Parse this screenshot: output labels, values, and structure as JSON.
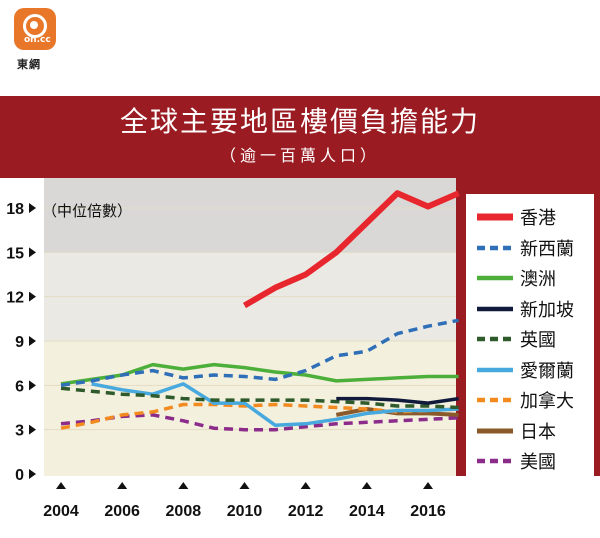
{
  "logo": {
    "on_text": "on.cc",
    "brand": "東網"
  },
  "chart_data": {
    "type": "line",
    "title": "全球主要地區樓價負擔能力",
    "subtitle": "（逾一百萬人口）",
    "ylabel": "（中位倍數）",
    "xlabel": "",
    "x": [
      2004,
      2005,
      2006,
      2007,
      2008,
      2009,
      2010,
      2011,
      2012,
      2013,
      2014,
      2015,
      2016,
      2017
    ],
    "x_ticks": [
      "2004",
      "2006",
      "2008",
      "2010",
      "2012",
      "2014",
      "2016"
    ],
    "y_ticks": [
      "0",
      "3",
      "6",
      "9",
      "12",
      "15",
      "18"
    ],
    "ylim": [
      0,
      19
    ],
    "xlim": [
      2004,
      2017
    ],
    "legend_position": "right",
    "series": [
      {
        "name": "香港",
        "color": "#e8262d",
        "dash": "solid",
        "width": 6,
        "x": [
          2010,
          2011,
          2012,
          2013,
          2014,
          2015,
          2016,
          2017
        ],
        "values": [
          11.4,
          12.6,
          13.5,
          15.0,
          17.0,
          19.0,
          18.1,
          19.0
        ]
      },
      {
        "name": "新西蘭",
        "color": "#2e6fb7",
        "dash": "dashed",
        "width": 3.5,
        "x": [
          2004,
          2005,
          2006,
          2007,
          2008,
          2009,
          2010,
          2011,
          2012,
          2013,
          2014,
          2015,
          2016,
          2017
        ],
        "values": [
          6.0,
          6.3,
          6.7,
          7.0,
          6.5,
          6.7,
          6.6,
          6.4,
          7.0,
          8.0,
          8.3,
          9.5,
          10.0,
          10.4
        ]
      },
      {
        "name": "澳洲",
        "color": "#4caf3a",
        "dash": "solid",
        "width": 3.5,
        "x": [
          2004,
          2005,
          2006,
          2007,
          2008,
          2009,
          2010,
          2011,
          2012,
          2013,
          2014,
          2015,
          2016,
          2017
        ],
        "values": [
          6.1,
          6.4,
          6.7,
          7.4,
          7.1,
          7.4,
          7.2,
          6.9,
          6.7,
          6.3,
          6.4,
          6.5,
          6.6,
          6.6
        ]
      },
      {
        "name": "新加坡",
        "color": "#101a3a",
        "dash": "solid",
        "width": 3.5,
        "x": [
          2013,
          2014,
          2015,
          2016,
          2017
        ],
        "values": [
          5.1,
          5.1,
          5.0,
          4.8,
          5.1
        ]
      },
      {
        "name": "英國",
        "color": "#2e5a2c",
        "dash": "dashed",
        "width": 3.5,
        "x": [
          2004,
          2005,
          2006,
          2007,
          2008,
          2009,
          2010,
          2011,
          2012,
          2013,
          2014,
          2015,
          2016,
          2017
        ],
        "values": [
          5.8,
          5.6,
          5.4,
          5.3,
          5.1,
          5.0,
          5.0,
          5.0,
          5.0,
          4.9,
          4.8,
          4.6,
          4.6,
          4.5
        ]
      },
      {
        "name": "愛爾蘭",
        "color": "#47a9de",
        "dash": "solid",
        "width": 3.5,
        "x": [
          2005,
          2006,
          2007,
          2008,
          2009,
          2010,
          2011,
          2012,
          2013,
          2014,
          2015,
          2016,
          2017
        ],
        "values": [
          6.1,
          5.7,
          5.4,
          6.1,
          4.8,
          4.8,
          3.3,
          3.4,
          3.7,
          4.1,
          4.3,
          4.3,
          4.4
        ]
      },
      {
        "name": "加拿大",
        "color": "#f28a1f",
        "dash": "dashed",
        "width": 3.5,
        "x": [
          2004,
          2005,
          2006,
          2007,
          2008,
          2009,
          2010,
          2011,
          2012,
          2013,
          2014,
          2015,
          2016,
          2017
        ],
        "values": [
          3.1,
          3.5,
          4.0,
          4.2,
          4.7,
          4.7,
          4.6,
          4.7,
          4.6,
          4.5,
          4.4,
          4.2,
          4.3,
          4.4
        ]
      },
      {
        "name": "日本",
        "color": "#8b5a2b",
        "dash": "solid",
        "width": 4,
        "x": [
          2013,
          2014,
          2015,
          2016,
          2017
        ],
        "values": [
          4.0,
          4.4,
          4.1,
          4.1,
          4.0
        ]
      },
      {
        "name": "美國",
        "color": "#8c2c8a",
        "dash": "dashed",
        "width": 3.5,
        "x": [
          2004,
          2005,
          2006,
          2007,
          2008,
          2009,
          2010,
          2011,
          2012,
          2013,
          2014,
          2015,
          2016,
          2017
        ],
        "values": [
          3.4,
          3.6,
          3.9,
          4.0,
          3.6,
          3.1,
          3.0,
          3.0,
          3.2,
          3.4,
          3.5,
          3.6,
          3.7,
          3.8
        ]
      }
    ]
  }
}
